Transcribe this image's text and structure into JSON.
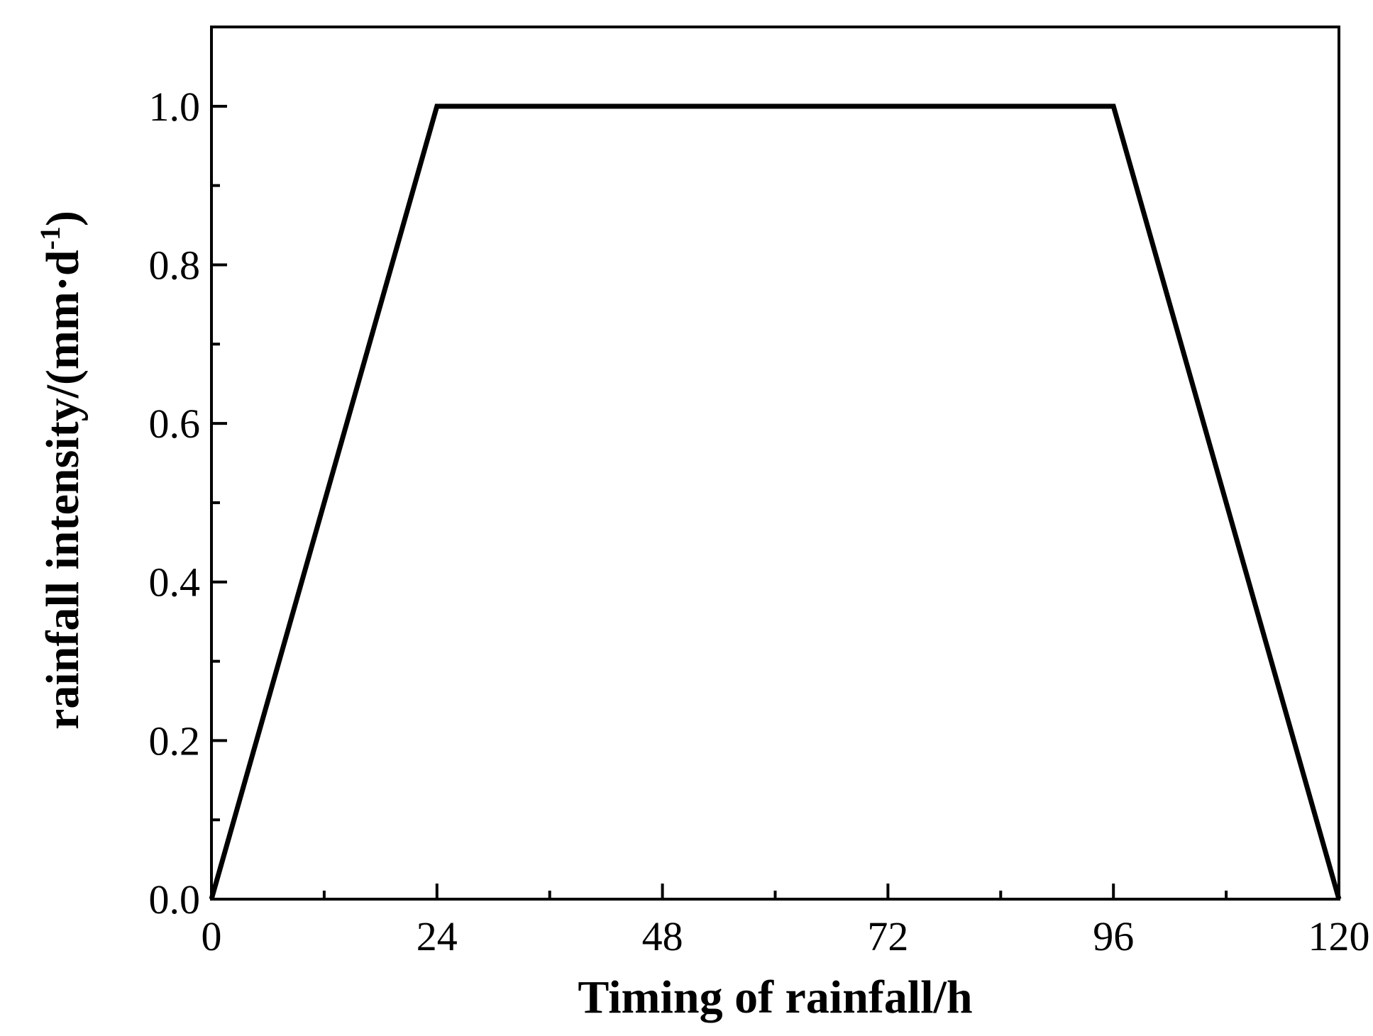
{
  "chart_data": {
    "type": "line",
    "title": "",
    "xlabel": "Timing of rainfall/h",
    "ylabel_main": "rainfall intensity/(mm·d",
    "ylabel_sup": "-1",
    "ylabel_close": ")",
    "xlim": [
      0,
      120
    ],
    "ylim": [
      0,
      1.1
    ],
    "xticks": [
      0,
      24,
      48,
      72,
      96,
      120
    ],
    "xtick_labels": [
      "0",
      "24",
      "48",
      "72",
      "96",
      "120"
    ],
    "x_minor_ticks": [
      12,
      36,
      60,
      84,
      108
    ],
    "yticks": [
      0.0,
      0.2,
      0.4,
      0.6,
      0.8,
      1.0
    ],
    "ytick_labels": [
      "0.0",
      "0.2",
      "0.4",
      "0.6",
      "0.8",
      "1.0"
    ],
    "y_minor_ticks": [
      0.1,
      0.3,
      0.5,
      0.7,
      0.9
    ],
    "grid": false,
    "legend": "none",
    "line_color": "#000000",
    "series": [
      {
        "x": [
          0,
          24,
          96,
          120
        ],
        "y": [
          0.0,
          1.0,
          1.0,
          0.0
        ]
      }
    ]
  }
}
